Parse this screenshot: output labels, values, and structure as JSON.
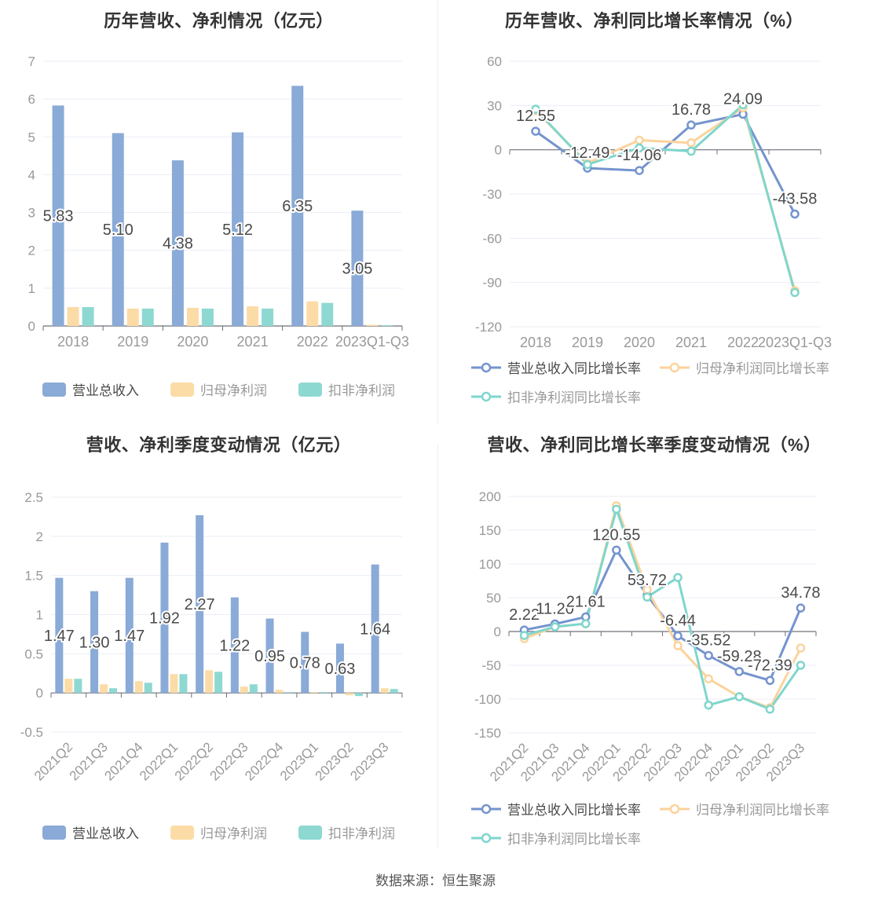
{
  "page": {
    "footer_source": "数据来源：恒生聚源"
  },
  "colors": {
    "grid": "#e9eef6",
    "axis": "#6e7079",
    "tick_label": "#999999",
    "value_label": "#4a4a4a",
    "title": "#333333",
    "bar_blue": "#8aaad7",
    "bar_orange": "#fcdca6",
    "bar_teal": "#8ed8d2",
    "line_blue": "#7494ce",
    "line_orange": "#fbd39c",
    "line_teal": "#7fd6cd",
    "divider": "#ececec"
  },
  "chart_data": [
    {
      "id": "annual-bars",
      "type": "bar",
      "title": "历年营收、净利情况（亿元）",
      "categories": [
        "2018",
        "2019",
        "2020",
        "2021",
        "2022",
        "2023Q1-Q3"
      ],
      "series": [
        {
          "name": "营业总收入",
          "color": "#8aaad7",
          "values": [
            5.83,
            5.1,
            4.38,
            5.12,
            6.35,
            3.05
          ],
          "labels": [
            "5.83",
            "5.10",
            "4.38",
            "5.12",
            "6.35",
            "3.05"
          ]
        },
        {
          "name": "归母净利润",
          "color": "#fcdca6",
          "values": [
            0.5,
            0.46,
            0.48,
            0.52,
            0.65,
            0.03
          ]
        },
        {
          "name": "扣非净利润",
          "color": "#8ed8d2",
          "values": [
            0.5,
            0.46,
            0.46,
            0.46,
            0.61,
            0.02
          ]
        }
      ],
      "ylim": [
        0,
        7
      ],
      "yticks": [
        7,
        6,
        5,
        4,
        3,
        2,
        1,
        0
      ],
      "grid": true,
      "legend_position": "bottom"
    },
    {
      "id": "annual-growth",
      "type": "line",
      "title": "历年营收、净利同比增长率情况（%）",
      "categories": [
        "2018",
        "2019",
        "2020",
        "2021",
        "2022",
        "2023Q1-Q3"
      ],
      "series": [
        {
          "name": "营业总收入同比增长率",
          "color": "#7494ce",
          "values": [
            12.55,
            -12.49,
            -14.06,
            16.78,
            24.09,
            -43.58
          ],
          "labels": [
            "12.55",
            "-12.49",
            "-14.06",
            "16.78",
            "24.09",
            "-43.58"
          ]
        },
        {
          "name": "归母净利润同比增长率",
          "color": "#fbd39c",
          "values": [
            26.5,
            -9.0,
            6.5,
            4.7,
            28.5,
            -95.5
          ]
        },
        {
          "name": "扣非净利润同比增长率",
          "color": "#7fd6cd",
          "values": [
            27.5,
            -10.0,
            1.2,
            -1.0,
            30.5,
            -96.8
          ]
        }
      ],
      "ylim": [
        -120,
        60
      ],
      "yticks": [
        60,
        30,
        0,
        -30,
        -60,
        -90,
        -120
      ],
      "grid": true,
      "legend_position": "bottom"
    },
    {
      "id": "quarterly-bars",
      "type": "bar",
      "title": "营收、净利季度变动情况（亿元）",
      "categories": [
        "2021Q2",
        "2021Q3",
        "2021Q4",
        "2022Q1",
        "2022Q2",
        "2022Q3",
        "2022Q4",
        "2023Q1",
        "2023Q2",
        "2023Q3"
      ],
      "series": [
        {
          "name": "营业总收入",
          "color": "#8aaad7",
          "values": [
            1.47,
            1.3,
            1.47,
            1.92,
            2.27,
            1.22,
            0.95,
            0.78,
            0.63,
            1.64
          ],
          "labels": [
            "1.47",
            "1.30",
            "1.47",
            "1.92",
            "2.27",
            "1.22",
            "0.95",
            "0.78",
            "0.63",
            "1.64"
          ]
        },
        {
          "name": "归母净利润",
          "color": "#fcdca6",
          "values": [
            0.18,
            0.11,
            0.15,
            0.24,
            0.29,
            0.08,
            0.04,
            0.01,
            -0.03,
            0.06
          ]
        },
        {
          "name": "扣非净利润",
          "color": "#8ed8d2",
          "values": [
            0.18,
            0.06,
            0.13,
            0.24,
            0.27,
            0.11,
            0.01,
            0.01,
            -0.04,
            0.05
          ]
        }
      ],
      "ylim": [
        -0.5,
        2.5
      ],
      "yticks": [
        2.5,
        2,
        1.5,
        1,
        0.5,
        0,
        -0.5
      ],
      "rotate_labels": true,
      "grid": true,
      "legend_position": "bottom"
    },
    {
      "id": "quarterly-growth",
      "type": "line",
      "title": "营收、净利同比增长率季度变动情况（%）",
      "categories": [
        "2021Q2",
        "2021Q3",
        "2021Q4",
        "2022Q1",
        "2022Q2",
        "2022Q3",
        "2022Q4",
        "2023Q1",
        "2023Q2",
        "2023Q3"
      ],
      "series": [
        {
          "name": "营业总收入同比增长率",
          "color": "#7494ce",
          "values": [
            2.22,
            11.2,
            21.61,
            120.55,
            53.72,
            -6.44,
            -35.52,
            -59.28,
            -72.39,
            34.78
          ],
          "labels": [
            "2.22",
            "11.20",
            "21.61",
            "120.55",
            "53.72",
            "-6.44",
            "-35.52",
            "-59.28",
            "-72.39",
            "34.78"
          ]
        },
        {
          "name": "归母净利润同比增长率",
          "color": "#fbd39c",
          "values": [
            -10.5,
            7.0,
            11.6,
            186.0,
            62.0,
            -21.0,
            -70.0,
            -96.5,
            -113.0,
            -24.5
          ]
        },
        {
          "name": "扣非净利润同比增长率",
          "color": "#7fd6cd",
          "values": [
            -5.8,
            7.0,
            11.6,
            181.0,
            51.0,
            80.0,
            -109.0,
            -96.5,
            -115.0,
            -50.0
          ]
        }
      ],
      "ylim": [
        -150,
        200
      ],
      "yticks": [
        200,
        150,
        100,
        50,
        0,
        -50,
        -100,
        -150
      ],
      "rotate_labels": true,
      "grid": true,
      "legend_position": "bottom"
    }
  ]
}
